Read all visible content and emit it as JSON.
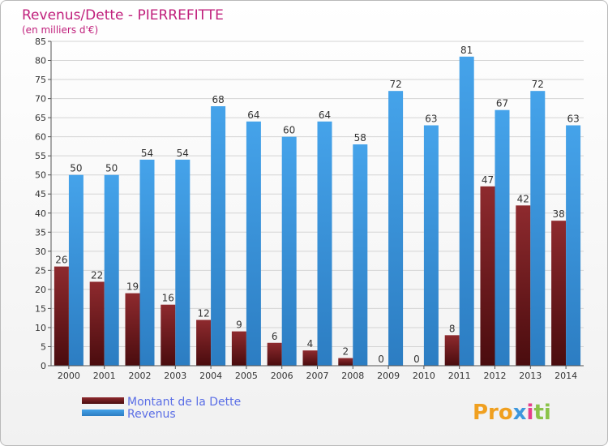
{
  "chart_data": {
    "type": "bar",
    "title": "Revenus/Dette - PIERREFITTE",
    "subtitle": "(en milliers d'€)",
    "categories": [
      "2000",
      "2001",
      "2002",
      "2003",
      "2004",
      "2005",
      "2006",
      "2007",
      "2008",
      "2009",
      "2010",
      "2011",
      "2012",
      "2013",
      "2014"
    ],
    "series": [
      {
        "name": "Montant de la Dette",
        "values": [
          26,
          22,
          19,
          16,
          12,
          9,
          6,
          4,
          2,
          0,
          0,
          8,
          47,
          42,
          38
        ],
        "color": "#7a1f22"
      },
      {
        "name": "Revenus",
        "values": [
          50,
          50,
          54,
          54,
          68,
          64,
          60,
          64,
          58,
          72,
          63,
          81,
          67,
          72,
          63
        ],
        "color": "#3d97dd"
      }
    ],
    "ylim": [
      0,
      85
    ],
    "yticks": [
      0,
      5,
      10,
      15,
      20,
      25,
      30,
      35,
      40,
      45,
      50,
      55,
      60,
      65,
      70,
      75,
      80,
      85
    ],
    "grid": true,
    "legend_position": "bottom-left"
  },
  "branding": {
    "logo_text": "Proxiti",
    "logo_colors": [
      "#f0a020",
      "#3d97dd",
      "#e63d8a",
      "#8bc34a"
    ]
  }
}
